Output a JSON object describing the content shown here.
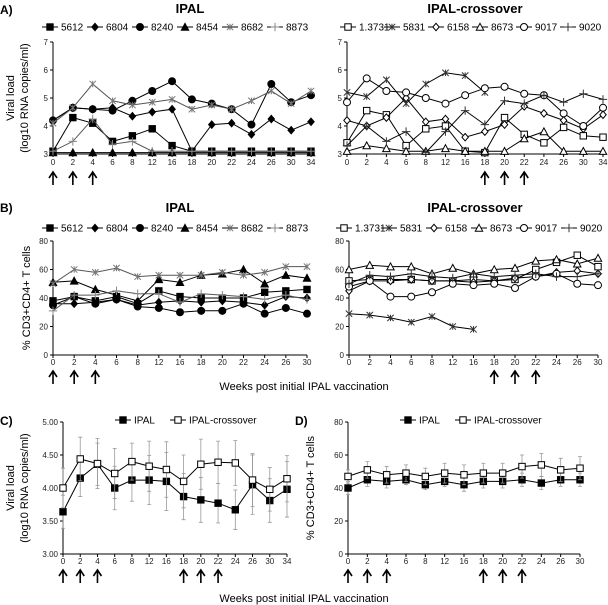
{
  "figure": {
    "panel_labels": [
      "A)",
      "B)",
      "C)",
      "D)"
    ],
    "shared_xlabel": "Weeks post initial IPAL vaccination"
  },
  "chart_data": [
    {
      "id": "A-IPAL",
      "panel": "A)",
      "type": "line",
      "title": "IPAL",
      "ylabel": [
        "Viral load",
        "(log10 RNA copies/ml)"
      ],
      "ylim": [
        3,
        7
      ],
      "yticks": [
        "3",
        "4",
        "5",
        "6",
        "7"
      ],
      "categories": [
        "0",
        "2",
        "4",
        "6",
        "8",
        "12",
        "16",
        "18",
        "20",
        "22",
        "24",
        "26",
        "30",
        "34"
      ],
      "arrows_at": [
        "0",
        "2",
        "4"
      ],
      "series": [
        {
          "name": "5612",
          "marker": "square",
          "filled": true,
          "values": [
            3.1,
            4.3,
            4.1,
            3.45,
            3.65,
            3.9,
            3.3,
            3.1,
            3.1,
            3.1,
            3.1,
            3.1,
            3.1,
            3.1
          ]
        },
        {
          "name": "6804",
          "marker": "diamond",
          "filled": true,
          "values": [
            4.2,
            4.65,
            4.6,
            4.65,
            4.35,
            4.5,
            4.6,
            3.1,
            4.05,
            4.1,
            3.7,
            4.25,
            3.85,
            4.15
          ]
        },
        {
          "name": "8240",
          "marker": "circle",
          "filled": true,
          "values": [
            4.2,
            4.65,
            4.6,
            4.55,
            4.9,
            5.25,
            5.6,
            4.95,
            4.8,
            4.6,
            4.05,
            5.5,
            4.85,
            5.1
          ]
        },
        {
          "name": "8454",
          "marker": "triangle",
          "filled": true,
          "values": [
            3.05,
            3.05,
            3.05,
            3.05,
            3.05,
            3.05,
            3.05,
            3.05,
            3.05,
            3.05,
            3.05,
            3.05,
            3.05,
            3.05
          ]
        },
        {
          "name": "8682",
          "marker": "asterisk",
          "filled": true,
          "values": [
            4.1,
            4.65,
            5.5,
            4.9,
            4.75,
            4.85,
            4.95,
            4.6,
            4.75,
            4.6,
            4.9,
            5.25,
            4.8,
            5.25
          ]
        },
        {
          "name": "8873",
          "marker": "plus",
          "filled": true,
          "values": [
            3.1,
            3.45,
            4.25,
            3.35,
            3.45,
            3.1,
            3.1,
            3.1,
            3.1,
            3.1,
            3.1,
            3.1,
            3.1,
            3.1
          ]
        }
      ]
    },
    {
      "id": "A-cross",
      "panel": "",
      "type": "line",
      "title": "IPAL-crossover",
      "ylabel": [],
      "ylim": [
        3,
        7
      ],
      "yticks": [
        "3",
        "4",
        "5",
        "6",
        "7"
      ],
      "categories": [
        "0",
        "2",
        "4",
        "6",
        "8",
        "12",
        "16",
        "18",
        "20",
        "22",
        "24",
        "26",
        "30",
        "34"
      ],
      "arrows_at": [
        "18",
        "20",
        "22"
      ],
      "series": [
        {
          "name": "1.3731",
          "marker": "square",
          "filled": false,
          "values": [
            3.4,
            4.55,
            4.4,
            3.3,
            3.9,
            4.0,
            3.1,
            3.05,
            4.3,
            3.7,
            3.4,
            3.95,
            3.65,
            3.6
          ]
        },
        {
          "name": "5831",
          "marker": "asterisk",
          "filled": false,
          "values": [
            5.2,
            5.05,
            5.65,
            4.8,
            5.5,
            5.9,
            5.8,
            5.2,
            null,
            null,
            null,
            null,
            null,
            null
          ]
        },
        {
          "name": "6158",
          "marker": "diamond",
          "filled": false,
          "values": [
            4.2,
            4.0,
            4.3,
            5.0,
            4.15,
            4.25,
            3.6,
            3.8,
            4.05,
            4.7,
            4.45,
            4.2,
            3.9,
            4.4
          ]
        },
        {
          "name": "8673",
          "marker": "triangle",
          "filled": false,
          "values": [
            3.1,
            3.3,
            3.2,
            3.1,
            3.1,
            3.2,
            3.1,
            3.1,
            3.1,
            3.55,
            3.8,
            3.1,
            3.1,
            3.1
          ]
        },
        {
          "name": "9017",
          "marker": "circle",
          "filled": false,
          "values": [
            4.85,
            5.7,
            5.25,
            5.2,
            5.0,
            4.8,
            5.1,
            5.35,
            5.4,
            5.15,
            5.1,
            4.45,
            4.0,
            4.65
          ]
        },
        {
          "name": "9020",
          "marker": "plus",
          "filled": false,
          "values": [
            3.3,
            4.0,
            3.45,
            3.8,
            3.05,
            3.8,
            4.55,
            4.05,
            4.9,
            4.8,
            5.1,
            4.85,
            5.15,
            4.95
          ]
        }
      ]
    },
    {
      "id": "B-IPAL",
      "panel": "B)",
      "type": "line",
      "title": "IPAL",
      "ylabel": [
        "% CD3+CD4+ T cells"
      ],
      "ylim": [
        0,
        80
      ],
      "yticks": [
        "0",
        "20",
        "40",
        "60",
        "80"
      ],
      "categories": [
        "0",
        "2",
        "4",
        "6",
        "8",
        "12",
        "16",
        "18",
        "20",
        "22",
        "24",
        "26",
        "30"
      ],
      "arrows_at": [
        "0",
        "2",
        "4"
      ],
      "series": [
        {
          "name": "5612",
          "marker": "square",
          "filled": true,
          "values": [
            38,
            41,
            38,
            41,
            36,
            45,
            41,
            40,
            40,
            40,
            44,
            45,
            46
          ]
        },
        {
          "name": "6804",
          "marker": "diamond",
          "filled": true,
          "values": [
            36,
            36,
            37,
            39,
            35,
            37,
            38,
            37,
            38,
            37,
            35,
            41,
            40
          ]
        },
        {
          "name": "8240",
          "marker": "circle",
          "filled": true,
          "values": [
            35,
            41,
            36,
            39,
            34,
            33,
            30,
            31,
            31,
            36,
            29,
            33,
            29
          ]
        },
        {
          "name": "8454",
          "marker": "triangle",
          "filled": true,
          "values": [
            51,
            52,
            46,
            42,
            38,
            53,
            51,
            56,
            57,
            60,
            50,
            56,
            54
          ]
        },
        {
          "name": "8682",
          "marker": "asterisk",
          "filled": true,
          "values": [
            50,
            60,
            58,
            61,
            55,
            56,
            56,
            56,
            58,
            56,
            58,
            62,
            62
          ]
        },
        {
          "name": "8873",
          "marker": "plus",
          "filled": true,
          "values": [
            31,
            42,
            42,
            45,
            43,
            43,
            37,
            43,
            42,
            41,
            39,
            42,
            39
          ]
        }
      ]
    },
    {
      "id": "B-cross",
      "panel": "",
      "type": "line",
      "title": "IPAL-crossover",
      "ylabel": [],
      "ylim": [
        0,
        80
      ],
      "yticks": [
        "0",
        "20",
        "40",
        "60",
        "80"
      ],
      "categories": [
        "0",
        "2",
        "4",
        "6",
        "8",
        "12",
        "16",
        "18",
        "20",
        "22",
        "24",
        "26",
        "30"
      ],
      "arrows_at": [
        "18",
        "20",
        "22"
      ],
      "series": [
        {
          "name": "1.3731",
          "marker": "square",
          "filled": false,
          "values": [
            52,
            53,
            53,
            53,
            52,
            52,
            53,
            52,
            53,
            60,
            65,
            70,
            62
          ]
        },
        {
          "name": "5831",
          "marker": "asterisk",
          "filled": false,
          "values": [
            29,
            28,
            26,
            23,
            27,
            20,
            18,
            null,
            null,
            null,
            null,
            null,
            null
          ]
        },
        {
          "name": "6158",
          "marker": "diamond",
          "filled": false,
          "values": [
            45,
            52,
            52,
            53,
            52,
            52,
            51,
            52,
            54,
            55,
            58,
            59,
            57
          ]
        },
        {
          "name": "8673",
          "marker": "triangle",
          "filled": false,
          "values": [
            60,
            63,
            62,
            62,
            57,
            61,
            57,
            60,
            61,
            66,
            67,
            64,
            68
          ]
        },
        {
          "name": "9017",
          "marker": "circle",
          "filled": false,
          "values": [
            48,
            52,
            41,
            41,
            44,
            50,
            49,
            50,
            47,
            55,
            57,
            50,
            49
          ]
        },
        {
          "name": "9020",
          "marker": "plus",
          "filled": false,
          "values": [
            50,
            56,
            55,
            57,
            55,
            54,
            57,
            55,
            56,
            57,
            55,
            55,
            57
          ]
        }
      ]
    },
    {
      "id": "C",
      "panel": "C)",
      "type": "line",
      "title": "",
      "ylabel": [
        "Viral load",
        "(log10 RNA copies/ml)"
      ],
      "ylim": [
        3,
        5
      ],
      "yticks": [
        "3.00",
        "3.50",
        "4.00",
        "4.50",
        "5.00"
      ],
      "categories": [
        "0",
        "2",
        "4",
        "6",
        "8",
        "12",
        "16",
        "18",
        "20",
        "22",
        "24",
        "26",
        "30",
        "34"
      ],
      "arrows_at": [
        "0",
        "2",
        "4",
        "18",
        "20",
        "22"
      ],
      "series": [
        {
          "name": "IPAL",
          "marker": "square",
          "filled": true,
          "values": [
            3.64,
            4.15,
            4.36,
            4.0,
            4.12,
            4.12,
            4.1,
            3.87,
            3.82,
            3.77,
            3.67,
            4.05,
            3.81,
            3.98
          ],
          "error": [
            0.25,
            0.28,
            0.32,
            0.33,
            0.32,
            0.37,
            0.44,
            0.35,
            0.34,
            0.3,
            0.3,
            0.45,
            0.33,
            0.42
          ]
        },
        {
          "name": "IPAL-crossover",
          "marker": "square",
          "filled": false,
          "values": [
            4.0,
            4.44,
            4.37,
            4.22,
            4.4,
            4.33,
            4.28,
            4.1,
            4.36,
            4.39,
            4.38,
            4.12,
            3.98,
            4.14
          ],
          "error": [
            0.3,
            0.33,
            0.38,
            0.38,
            0.28,
            0.38,
            0.42,
            0.4,
            0.38,
            0.32,
            0.34,
            0.4,
            0.33,
            0.35
          ]
        }
      ]
    },
    {
      "id": "D",
      "panel": "D)",
      "type": "line",
      "title": "",
      "ylabel": [
        "% CD3+CD4+ T cells"
      ],
      "ylim": [
        0,
        80
      ],
      "yticks": [
        "0",
        "20",
        "40",
        "60",
        "80"
      ],
      "categories": [
        "0",
        "2",
        "4",
        "6",
        "8",
        "12",
        "16",
        "18",
        "20",
        "22",
        "24",
        "26",
        "30"
      ],
      "arrows_at": [
        "0",
        "2",
        "4",
        "18",
        "20",
        "22"
      ],
      "series": [
        {
          "name": "IPAL",
          "marker": "square",
          "filled": true,
          "values": [
            40,
            45,
            44,
            45,
            42,
            44,
            42,
            44,
            44,
            45,
            43,
            45,
            45
          ],
          "error": [
            4,
            4,
            4,
            3,
            3,
            3,
            4,
            4,
            4,
            4,
            4,
            4,
            4
          ]
        },
        {
          "name": "IPAL-crossover",
          "marker": "square",
          "filled": false,
          "values": [
            47,
            51,
            48,
            49,
            47,
            49,
            48,
            49,
            49,
            53,
            54,
            51,
            52
          ],
          "error": [
            4,
            5,
            5,
            5,
            5,
            6,
            6,
            6,
            6,
            7,
            7,
            7,
            7
          ]
        }
      ]
    }
  ]
}
